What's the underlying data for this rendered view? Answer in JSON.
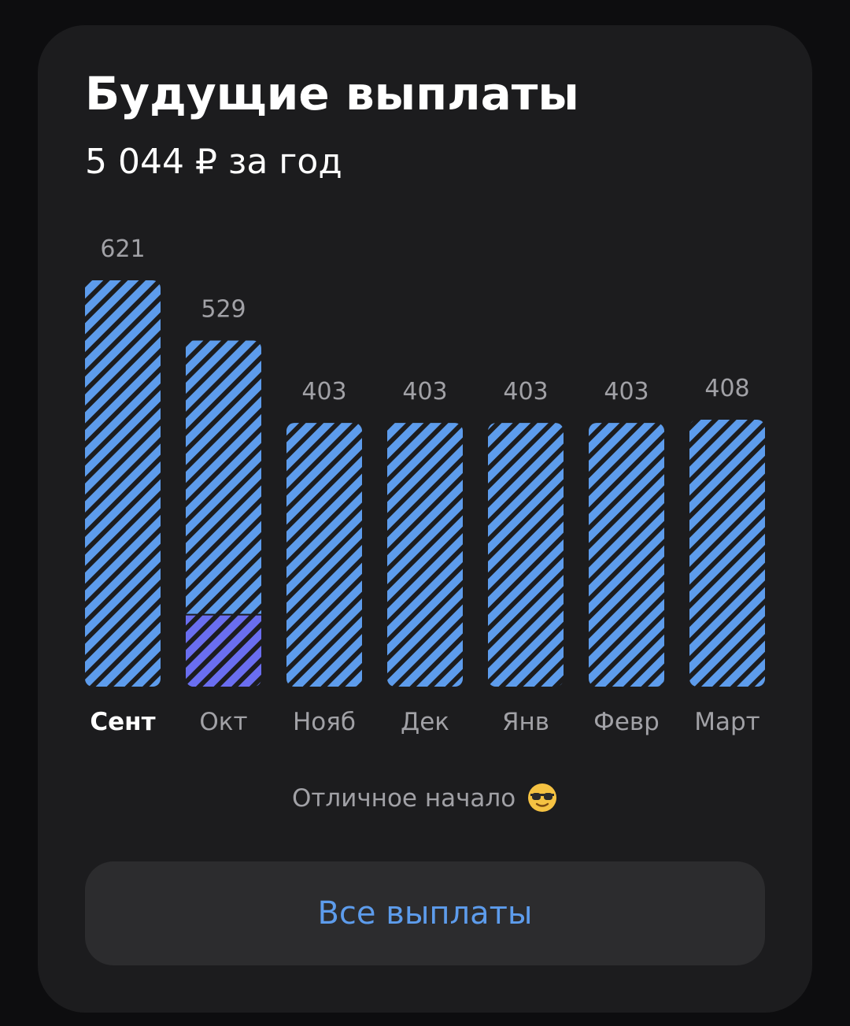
{
  "card": {
    "title": "Будущие выплаты",
    "subtitle": "5 044 ₽ за год",
    "footnote": "Отличное начало",
    "footnote_icon": "sunglasses-emoji-icon",
    "button_label": "Все выплаты"
  },
  "colors": {
    "bar": "#5d9cec",
    "bar_highlight": "#6a6ef0",
    "stripe": "#1c1c1e",
    "value_label": "#a1a1a6",
    "month_label": "#a1a1a6",
    "month_label_active": "#ffffff",
    "button_text": "#5d9cec"
  },
  "chart_data": {
    "type": "bar",
    "categories": [
      "Сент",
      "Окт",
      "Нояб",
      "Дек",
      "Янв",
      "Февр",
      "Март"
    ],
    "values": [
      621,
      529,
      403,
      403,
      403,
      403,
      408
    ],
    "highlighted_portion": [
      0,
      110,
      0,
      0,
      0,
      0,
      0
    ],
    "active_category": "Сент",
    "ylim": [
      0,
      621
    ],
    "grid": false,
    "legend": "none"
  }
}
